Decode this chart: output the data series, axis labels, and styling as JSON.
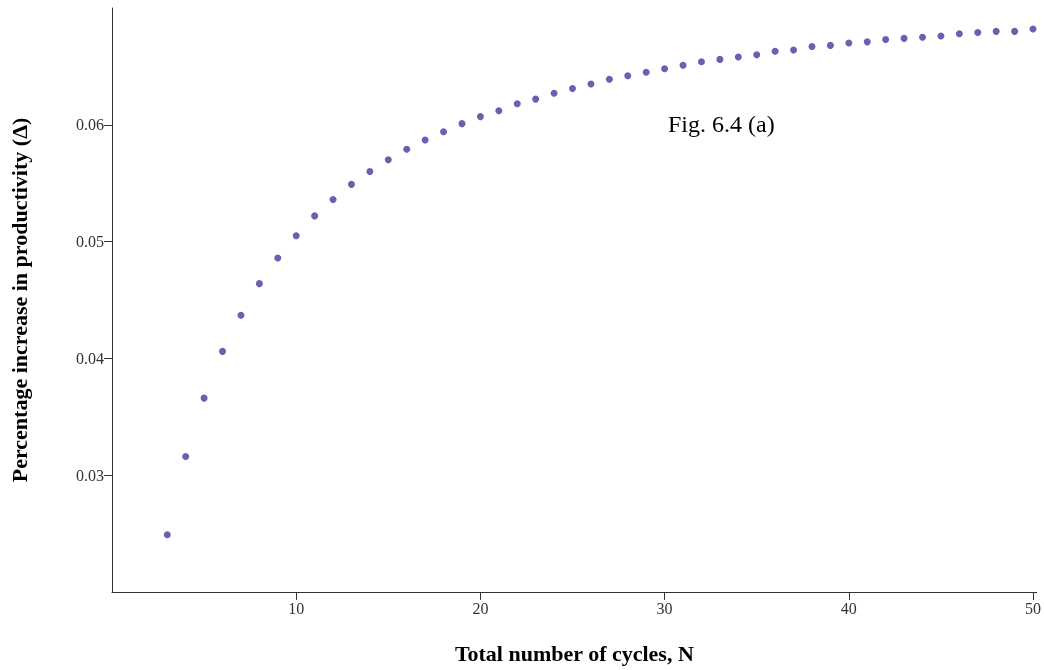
{
  "chart_data": {
    "type": "scatter",
    "xlabel": "Total number of cycles, N",
    "ylabel": "Percentage increase in productivity (Δ)",
    "annotations": [
      "Fig. 6.4 (a)"
    ],
    "x": [
      3,
      4,
      5,
      6,
      7,
      8,
      9,
      10,
      11,
      12,
      13,
      14,
      15,
      16,
      17,
      18,
      19,
      20,
      21,
      22,
      23,
      24,
      25,
      26,
      27,
      28,
      29,
      30,
      31,
      32,
      33,
      34,
      35,
      36,
      37,
      38,
      39,
      40,
      41,
      42,
      43,
      44,
      45,
      46,
      47,
      48,
      49,
      50
    ],
    "series": [
      {
        "color": "#3c3c9c",
        "values": [
          0.0249,
          0.0316,
          0.0366,
          0.0406,
          0.0437,
          0.0464,
          0.0486,
          0.0505,
          0.0522,
          0.0536,
          0.0549,
          0.056,
          0.057,
          0.0579,
          0.0587,
          0.0594,
          0.0601,
          0.0607,
          0.0612,
          0.0618,
          0.0622,
          0.0627,
          0.0631,
          0.0635,
          0.0639,
          0.0642,
          0.0645,
          0.0648,
          0.0651,
          0.0654,
          0.0656,
          0.0658,
          0.066,
          0.0663,
          0.0664,
          0.0667,
          0.0668,
          0.067,
          0.0671,
          0.0673,
          0.0674,
          0.0675,
          0.0676,
          0.0678,
          0.0679,
          0.068,
          0.068,
          0.0682
        ]
      }
    ],
    "xlim": [
      0,
      50.2
    ],
    "xticks": [
      10,
      20,
      30,
      40,
      50
    ],
    "ylim": [
      0.02,
      0.07
    ],
    "yticks": [
      0.03,
      0.04,
      0.05,
      0.06
    ],
    "marker": "circle",
    "grid": false
  }
}
